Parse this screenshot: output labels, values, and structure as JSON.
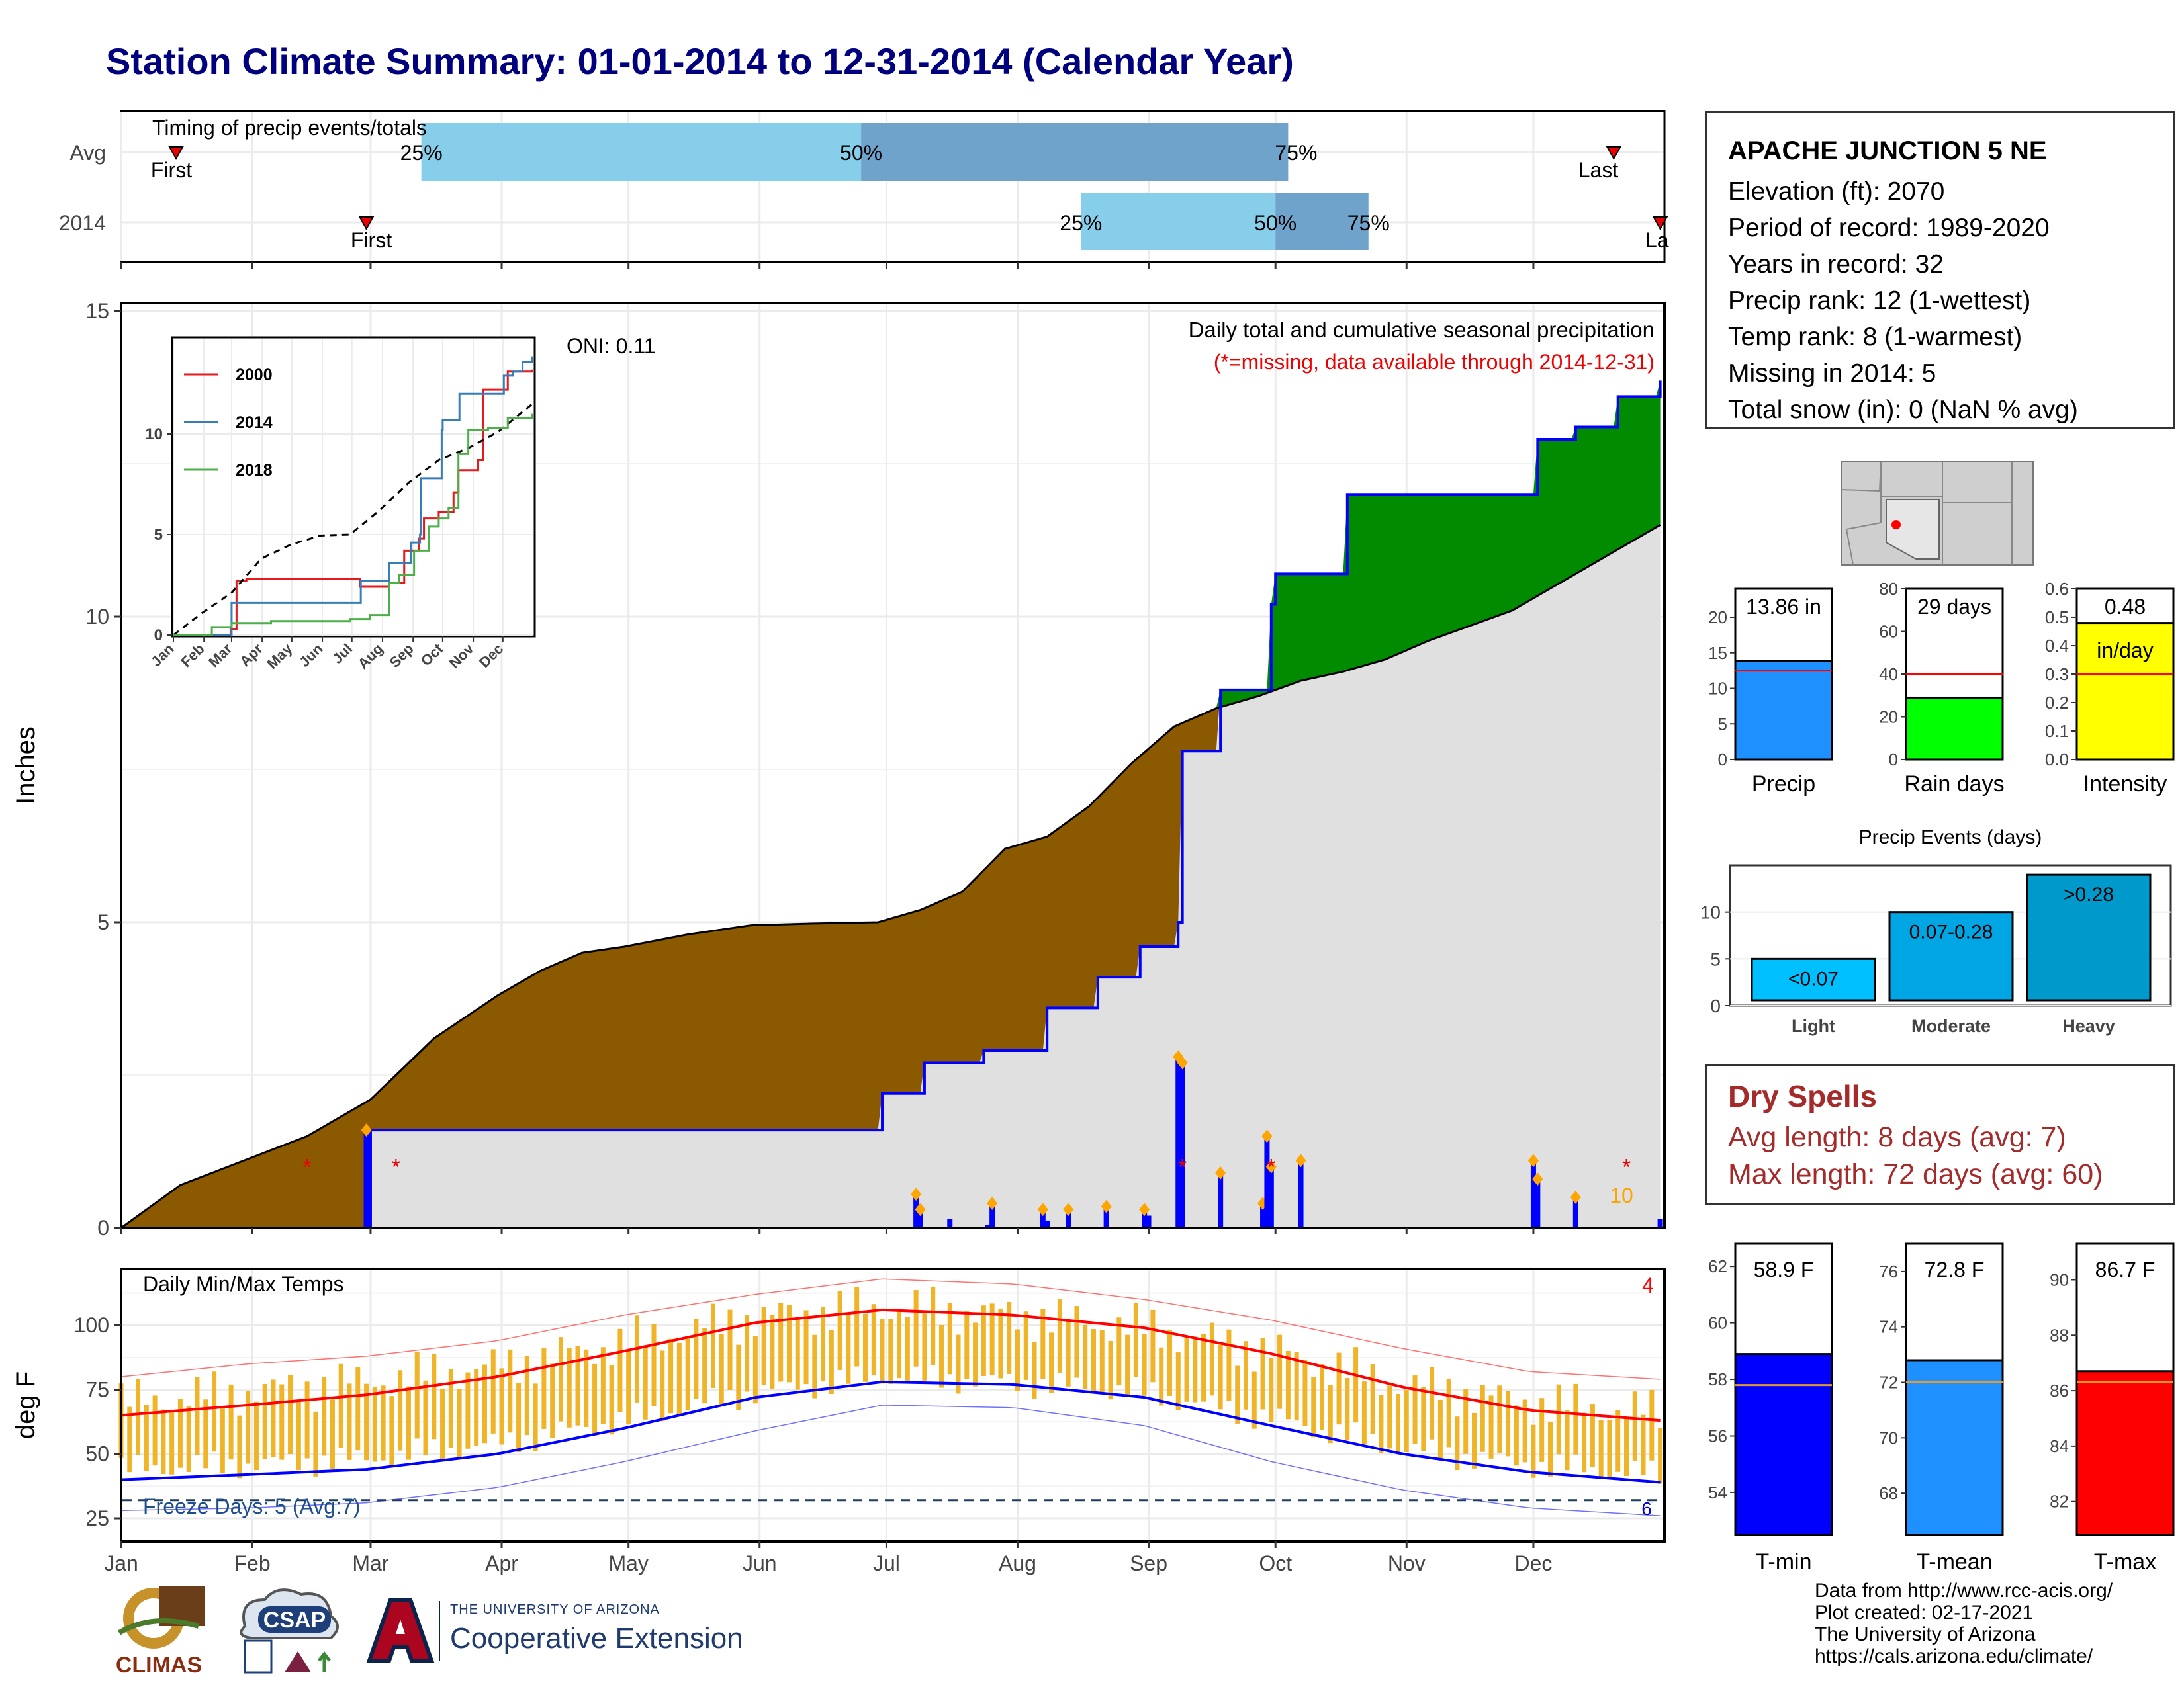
{
  "title": "Station Climate Summary: 01-01-2014 to 12-31-2014 (Calendar Year)",
  "months": [
    "Jan",
    "Feb",
    "Mar",
    "Apr",
    "May",
    "Jun",
    "Jul",
    "Aug",
    "Sep",
    "Oct",
    "Nov",
    "Dec"
  ],
  "timing": {
    "label": "Timing of precip events/totals",
    "rows": [
      "Avg",
      "2014"
    ],
    "first_label": "First",
    "last_label": "Last",
    "last_label_clipped": "La",
    "pct_labels": [
      "25%",
      "50%",
      "75%"
    ]
  },
  "station": {
    "name": "APACHE JUNCTION 5 NE",
    "lines": [
      "Elevation (ft): 2070",
      "Period of record: 1989-2020",
      "Years in record: 32",
      "Precip rank: 12 (1-wettest)",
      "Temp rank: 8 (1-warmest)",
      "Missing in 2014: 5",
      "Total snow (in): 0 (NaN % avg)"
    ]
  },
  "main": {
    "ylabel": "Inches",
    "oni": "ONI: 0.11",
    "subtitle": "Daily total and cumulative seasonal precipitation",
    "missing_note": "(*=missing, data available through 2014-12-31)",
    "count_label": "10"
  },
  "inset": {
    "legend": [
      "2000",
      "2014",
      "2018"
    ],
    "months": [
      "Jan",
      "Feb",
      "Mar",
      "Apr",
      "May",
      "Jun",
      "Jul",
      "Aug",
      "Sep",
      "Oct",
      "Nov",
      "Dec"
    ]
  },
  "mini_bars": [
    {
      "label": "Precip",
      "value_label": "13.86 in",
      "value": 13.86,
      "avg": 12.5,
      "ymax": 24,
      "ticks": [
        0,
        5,
        10,
        15,
        20
      ],
      "color": "#1e90ff"
    },
    {
      "label": "Rain days",
      "value_label": "29 days",
      "value": 29,
      "avg": 40,
      "ymax": 80,
      "ticks": [
        0,
        20,
        40,
        60,
        80
      ],
      "color": "#00ff00"
    },
    {
      "label": "Intensity",
      "value_label": "0.48",
      "value_label2": "in/day",
      "value": 0.48,
      "avg": 0.3,
      "ymax": 0.6,
      "ticks": [
        0.0,
        0.1,
        0.2,
        0.3,
        0.4,
        0.5,
        0.6
      ],
      "color": "#ffff00"
    }
  ],
  "events": {
    "title": "Precip Events (days)",
    "categories": [
      "Light",
      "Moderate",
      "Heavy"
    ],
    "bin_labels": [
      "<0.07",
      "0.07-0.28",
      ">0.28"
    ],
    "values": [
      5,
      10,
      14
    ],
    "colors": [
      "#00bfff",
      "#00a5e3",
      "#0099cc"
    ],
    "ticks": [
      0,
      5,
      10
    ]
  },
  "dry_spells": {
    "title": "Dry Spells",
    "avg": "Avg length: 8 days (avg: 7)",
    "max": "Max length: 72 days (avg: 60)"
  },
  "temps": {
    "title": "Daily Min/Max Temps",
    "ylabel": "deg F",
    "freeze": "Freeze Days: 5 (Avg:7)",
    "count_label": "4",
    "freeze_end": "6"
  },
  "temp_bars": [
    {
      "label": "T-min",
      "value_label": "58.9 F",
      "value": 58.9,
      "avg": 57.8,
      "ymin": 52.5,
      "ymax": 62.8,
      "ticks": [
        54,
        56,
        58,
        60,
        62
      ],
      "color": "#0000ff"
    },
    {
      "label": "T-mean",
      "value_label": "72.8 F",
      "value": 72.8,
      "avg": 72.0,
      "ymin": 66.5,
      "ymax": 77.0,
      "ticks": [
        68,
        70,
        72,
        74,
        76
      ],
      "color": "#1e90ff"
    },
    {
      "label": "T-max",
      "value_label": "86.7 F",
      "value": 86.7,
      "avg": 86.3,
      "ymin": 80.8,
      "ymax": 91.3,
      "ticks": [
        82,
        84,
        86,
        88,
        90
      ],
      "color": "#ff0000"
    }
  ],
  "credits": [
    "Data from http://www.rcc-acis.org/",
    "Plot created: 02-17-2021",
    "The University of Arizona",
    "https://cals.arizona.edu/climate/"
  ],
  "logos": {
    "climas": "CLIMAS",
    "csap": "CSAP",
    "ua_small": "THE UNIVERSITY OF ARIZONA",
    "ua_big": "Cooperative Extension"
  },
  "chart_data": [
    {
      "type": "area",
      "title": "Daily total and cumulative seasonal precipitation",
      "ylabel": "Inches",
      "ylim": [
        0,
        15
      ],
      "x_unit": "day of year",
      "series": [
        {
          "name": "2014",
          "x": [
            1,
            59,
            60,
            180,
            181,
            191,
            205,
            220,
            232,
            242,
            251,
            252,
            261,
            272,
            273,
            274,
            290,
            291,
            335,
            336,
            345,
            355,
            365
          ],
          "values": [
            0.0,
            0.0,
            1.6,
            1.6,
            2.2,
            2.7,
            2.9,
            3.6,
            4.1,
            4.6,
            5.0,
            7.8,
            8.8,
            8.8,
            10.2,
            10.7,
            10.7,
            12.0,
            12.0,
            12.9,
            13.1,
            13.6,
            13.86
          ]
        },
        {
          "x": [
            1,
            15,
            30,
            45,
            60,
            75,
            90,
            100,
            110,
            120,
            135,
            150,
            165,
            180,
            190,
            200,
            210,
            220,
            230,
            240,
            250,
            260,
            270,
            280,
            290,
            300,
            310,
            320,
            330,
            340,
            350,
            365
          ],
          "values": [
            0.0,
            0.7,
            1.1,
            1.5,
            2.1,
            3.1,
            3.8,
            4.2,
            4.5,
            4.6,
            4.8,
            4.95,
            4.98,
            5.0,
            5.2,
            5.5,
            6.2,
            6.4,
            6.9,
            7.6,
            8.2,
            8.5,
            8.7,
            8.95,
            9.1,
            9.3,
            9.6,
            9.85,
            10.1,
            10.5,
            10.9,
            11.5
          ]
        }
      ],
      "daily_bars": {
        "day": [
          59,
          189,
          190,
          197,
          206,
          207,
          219,
          220,
          225,
          234,
          243,
          244,
          251,
          252,
          261,
          271,
          272,
          273,
          280,
          335,
          336,
          345,
          365
        ],
        "inches": [
          1.6,
          0.55,
          0.3,
          0.15,
          0.05,
          0.4,
          0.3,
          0.12,
          0.3,
          0.35,
          0.3,
          0.2,
          2.8,
          2.7,
          0.9,
          0.4,
          1.5,
          1.0,
          1.1,
          1.1,
          0.8,
          0.5,
          0.15
        ]
      },
      "missing_days": [
        45,
        66,
        252,
        273,
        357
      ]
    },
    {
      "type": "line",
      "title": "",
      "xlabel": "",
      "ylabel": "",
      "categories": [
        "Jan",
        "Feb",
        "Mar",
        "Apr",
        "May",
        "Jun",
        "Jul",
        "Aug",
        "Sep",
        "Oct",
        "Nov",
        "Dec"
      ],
      "ylim": [
        0,
        14.5
      ],
      "series": [
        {
          "name": "2000",
          "x": [
            1,
            59,
            65,
            75,
            180,
            190,
            220,
            235,
            250,
            255,
            270,
            285,
            290,
            310,
            315,
            340,
            365
          ],
          "values": [
            0,
            0.3,
            2.7,
            2.8,
            2.8,
            2.4,
            2.6,
            4.2,
            4.8,
            5.8,
            6.1,
            7.1,
            8.2,
            8.7,
            12.2,
            13.1,
            13.2
          ]
        },
        {
          "name": "2014",
          "x": [
            1,
            59,
            60,
            180,
            191,
            220,
            242,
            251,
            252,
            273,
            274,
            291,
            336,
            345,
            355,
            365
          ],
          "values": [
            0,
            0,
            1.6,
            1.6,
            2.7,
            3.6,
            4.6,
            5.0,
            7.8,
            10.2,
            10.7,
            12.0,
            12.9,
            13.1,
            13.6,
            13.86
          ]
        },
        {
          "name": "",
          "x": [
            1,
            30,
            60,
            90,
            120,
            150,
            180,
            210,
            240,
            270,
            300,
            330,
            365
          ],
          "values": [
            0,
            1.1,
            2.1,
            3.8,
            4.5,
            4.95,
            5.0,
            6.2,
            7.6,
            8.7,
            9.3,
            10.1,
            11.5
          ]
        },
        {
          "name": "2018",
          "x": [
            1,
            40,
            60,
            100,
            180,
            200,
            220,
            230,
            245,
            260,
            270,
            280,
            290,
            300,
            320,
            340,
            365
          ],
          "values": [
            0,
            0.4,
            0.6,
            0.7,
            0.8,
            1.0,
            2.6,
            3.0,
            4.2,
            5.4,
            5.8,
            6.3,
            9.0,
            10.2,
            10.3,
            10.8,
            11.0
          ]
        }
      ]
    },
    {
      "type": "line",
      "title": "Daily Min/Max Temps",
      "ylabel": "deg F",
      "ylim": [
        16,
        122
      ],
      "freeze_threshold": 32,
      "series": [
        {
          "x": [
            1,
            31,
            59,
            90,
            120,
            151,
            181,
            212,
            243,
            273,
            304,
            334,
            365
          ],
          "values": [
            65,
            69,
            73,
            80,
            90,
            101,
            106,
            104,
            99,
            89,
            76,
            67,
            63
          ]
        },
        {
          "x": [
            1,
            31,
            59,
            90,
            120,
            151,
            181,
            212,
            243,
            273,
            304,
            334,
            365
          ],
          "values": [
            40,
            42,
            44,
            50,
            60,
            72,
            78,
            77,
            72,
            61,
            50,
            43,
            39
          ]
        },
        {
          "x": [
            1,
            31,
            59,
            90,
            120,
            151,
            181,
            212,
            243,
            273,
            304,
            334,
            365
          ],
          "values": [
            80,
            85,
            88,
            94,
            104,
            112,
            118,
            116,
            110,
            102,
            91,
            82,
            79
          ]
        },
        {
          "x": [
            1,
            31,
            59,
            90,
            120,
            151,
            181,
            212,
            243,
            273,
            304,
            334,
            365
          ],
          "values": [
            28,
            29,
            31,
            37,
            47,
            59,
            69,
            68,
            61,
            47,
            36,
            29,
            26
          ]
        }
      ],
      "daily_range": {
        "x": [
          1,
          31,
          59,
          90,
          120,
          151,
          181,
          212,
          243,
          273,
          304,
          334,
          365
        ],
        "low": [
          44,
          46,
          48,
          54,
          63,
          74,
          80,
          78,
          74,
          64,
          52,
          46,
          42
        ],
        "high": [
          70,
          74,
          78,
          84,
          93,
          103,
          107,
          104,
          99,
          90,
          77,
          70,
          66
        ]
      }
    },
    {
      "type": "bar",
      "title": "Precip Events (days)",
      "categories": [
        "Light",
        "Moderate",
        "Heavy"
      ],
      "values": [
        5,
        10,
        14
      ]
    },
    {
      "type": "bar",
      "categories": [
        "Precip",
        "Rain days",
        "Intensity"
      ],
      "values": [
        13.86,
        29,
        0.48
      ],
      "averages": [
        12.5,
        40,
        0.3
      ]
    },
    {
      "type": "bar",
      "categories": [
        "T-min",
        "T-mean",
        "T-max"
      ],
      "values": [
        58.9,
        72.8,
        86.7
      ],
      "averages": [
        57.8,
        72.0,
        86.3
      ]
    }
  ]
}
